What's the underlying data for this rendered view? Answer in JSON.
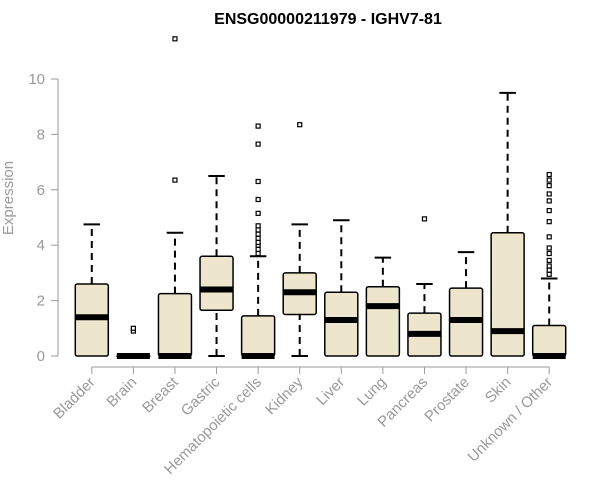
{
  "colors": {
    "box_fill": "#ede6cc",
    "box_stroke": "#000000",
    "axis": "#9a9a9a",
    "title": "#000000"
  },
  "chart_data": {
    "type": "boxplot",
    "title": "ENSG00000211979 - IGHV7-81",
    "ylabel": "Expression",
    "xlabel": "",
    "ylim": [
      0,
      10.5
    ],
    "yticks": [
      0,
      2,
      4,
      6,
      8,
      10
    ],
    "grid": false,
    "categories": [
      "Bladder",
      "Brain",
      "Breast",
      "Gastric",
      "Hematopoietic cells",
      "Kidney",
      "Liver",
      "Lung",
      "Pancreas",
      "Prostate",
      "Skin",
      "Unknown / Other"
    ],
    "boxes": [
      {
        "category": "Bladder",
        "min": 0,
        "q1": 0,
        "median": 1.4,
        "q3": 2.6,
        "max": 4.75,
        "outliers": []
      },
      {
        "category": "Brain",
        "min": 0,
        "q1": 0,
        "median": 0,
        "q3": 0,
        "max": 0,
        "outliers": [
          0.9,
          1.0
        ]
      },
      {
        "category": "Breast",
        "min": 0,
        "q1": 0,
        "median": 0,
        "q3": 2.25,
        "max": 4.45,
        "outliers": [
          6.35,
          11.45
        ]
      },
      {
        "category": "Gastric",
        "min": 0,
        "q1": 1.65,
        "median": 2.4,
        "q3": 3.6,
        "max": 6.5,
        "outliers": []
      },
      {
        "category": "Hematopoietic cells",
        "min": 0,
        "q1": 0,
        "median": 0,
        "q3": 1.45,
        "max": 3.6,
        "outliers": [
          3.7,
          3.85,
          4.0,
          4.1,
          4.25,
          4.4,
          4.55,
          4.7,
          5.15,
          5.65,
          6.3,
          7.65,
          8.3
        ]
      },
      {
        "category": "Kidney",
        "min": 0,
        "q1": 1.5,
        "median": 2.3,
        "q3": 3.0,
        "max": 4.75,
        "outliers": [
          8.35
        ]
      },
      {
        "category": "Liver",
        "min": 0,
        "q1": 0,
        "median": 1.3,
        "q3": 2.3,
        "max": 4.9,
        "outliers": []
      },
      {
        "category": "Lung",
        "min": 0,
        "q1": 0,
        "median": 1.8,
        "q3": 2.5,
        "max": 3.55,
        "outliers": []
      },
      {
        "category": "Pancreas",
        "min": 0,
        "q1": 0,
        "median": 0.8,
        "q3": 1.55,
        "max": 2.6,
        "outliers": [
          4.95
        ]
      },
      {
        "category": "Prostate",
        "min": 0,
        "q1": 0,
        "median": 1.3,
        "q3": 2.45,
        "max": 3.75,
        "outliers": []
      },
      {
        "category": "Skin",
        "min": 0,
        "q1": 0,
        "median": 0.9,
        "q3": 4.45,
        "max": 9.5,
        "outliers": []
      },
      {
        "category": "Unknown / Other",
        "min": 0,
        "q1": 0,
        "median": 0,
        "q3": 1.1,
        "max": 2.8,
        "outliers": [
          2.95,
          3.1,
          3.25,
          3.45,
          3.7,
          3.9,
          4.3,
          4.85,
          5.25,
          5.6,
          5.85,
          6.15,
          6.35,
          6.55
        ]
      }
    ]
  }
}
